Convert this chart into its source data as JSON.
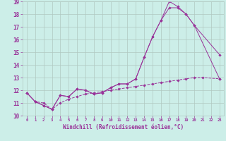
{
  "bg_color": "#cceee8",
  "grid_color": "#b0c8c0",
  "line_color": "#993399",
  "xlabel": "Windchill (Refroidissement éolien,°C)",
  "xlim": [
    -0.5,
    23.5
  ],
  "ylim": [
    10,
    19
  ],
  "yticks": [
    10,
    11,
    12,
    13,
    14,
    15,
    16,
    17,
    18,
    19
  ],
  "xticks": [
    0,
    1,
    2,
    3,
    4,
    5,
    6,
    7,
    8,
    9,
    10,
    11,
    12,
    13,
    14,
    15,
    16,
    17,
    18,
    19,
    20,
    21,
    22,
    23
  ],
  "series": [
    {
      "x": [
        0,
        1,
        2,
        3,
        4,
        5,
        6,
        7,
        8,
        9,
        10,
        11,
        12,
        13,
        14,
        15,
        16,
        17,
        18,
        19,
        20,
        23
      ],
      "y": [
        11.8,
        11.1,
        10.8,
        10.5,
        11.6,
        11.5,
        12.1,
        12.0,
        11.7,
        11.8,
        12.2,
        12.5,
        12.5,
        12.9,
        14.6,
        16.2,
        17.5,
        19.0,
        18.6,
        18.0,
        17.1,
        14.8
      ],
      "ls": "-"
    },
    {
      "x": [
        0,
        1,
        2,
        3,
        4,
        5,
        6,
        7,
        8,
        9,
        10,
        11,
        12,
        13,
        14,
        15,
        16,
        17,
        18,
        19,
        20,
        23
      ],
      "y": [
        11.8,
        11.1,
        10.8,
        10.5,
        11.6,
        11.5,
        12.1,
        12.0,
        11.7,
        11.8,
        12.2,
        12.5,
        12.5,
        12.9,
        14.6,
        16.2,
        17.5,
        18.5,
        18.5,
        18.0,
        17.1,
        12.9
      ],
      "ls": "-"
    },
    {
      "x": [
        0,
        1,
        2,
        3,
        4,
        5,
        6,
        7,
        8,
        9,
        10,
        11,
        12,
        13,
        14,
        15,
        16,
        17,
        18,
        19,
        20,
        21,
        23
      ],
      "y": [
        11.8,
        11.1,
        11.0,
        10.5,
        11.0,
        11.3,
        11.5,
        11.7,
        11.8,
        11.9,
        12.0,
        12.1,
        12.2,
        12.3,
        12.4,
        12.5,
        12.6,
        12.7,
        12.8,
        12.9,
        13.0,
        13.0,
        12.9
      ],
      "ls": "--"
    }
  ]
}
